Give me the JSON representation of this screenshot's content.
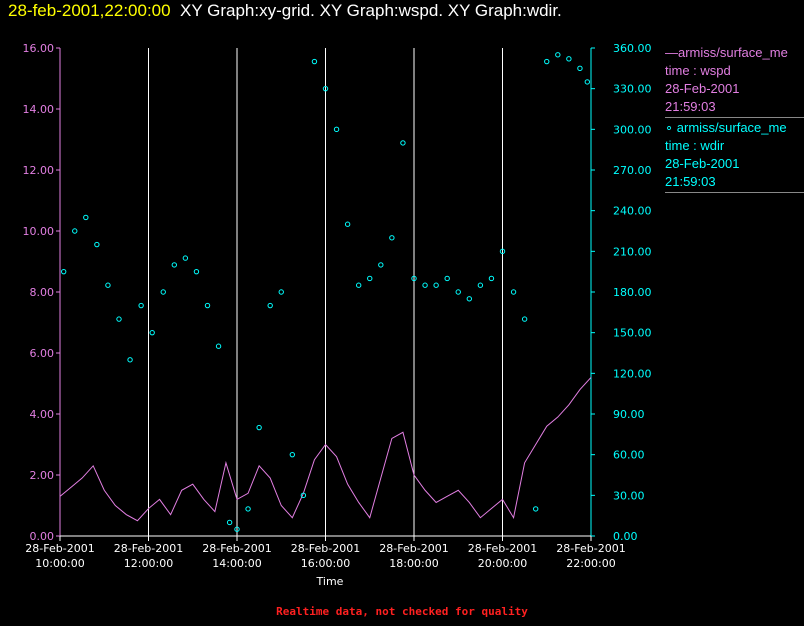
{
  "header": {
    "timestamp": "28-feb-2001,22:00:00",
    "titles": "XY Graph:xy-grid.  XY Graph:wspd.  XY Graph:wdir."
  },
  "legend": [
    {
      "marker": "—",
      "name": "armiss/surface_me",
      "line1": "time : wspd",
      "line2": "28-Feb-2001",
      "line3": "21:59:03",
      "color": "#e27fe2"
    },
    {
      "marker": "∘",
      "name": "armiss/surface_me",
      "line1": "time : wdir",
      "line2": "28-Feb-2001",
      "line3": "21:59:03",
      "color": "#00ffff"
    }
  ],
  "footer": "Realtime data, not checked for quality",
  "colors": {
    "wspd": "#e27fe2",
    "wdir": "#00ffff",
    "grid": "#ffffff"
  },
  "chart_data": {
    "type": "line",
    "xlabel": "Time",
    "x_ticks": [
      {
        "date": "28-Feb-2001",
        "time": "10:00:00"
      },
      {
        "date": "28-Feb-2001",
        "time": "12:00:00"
      },
      {
        "date": "28-Feb-2001",
        "time": "14:00:00"
      },
      {
        "date": "28-Feb-2001",
        "time": "16:00:00"
      },
      {
        "date": "28-Feb-2001",
        "time": "18:00:00"
      },
      {
        "date": "28-Feb-2001",
        "time": "20:00:00"
      },
      {
        "date": "28-Feb-2001",
        "time": "22:00:00"
      }
    ],
    "xlim": [
      "10:00:00",
      "22:00:00"
    ],
    "grid_times": [
      "12:00:00",
      "14:00:00",
      "16:00:00",
      "18:00:00",
      "20:00:00"
    ],
    "y_left": {
      "ylim": [
        0,
        16
      ],
      "ticks": [
        "0.00",
        "2.00",
        "4.00",
        "6.00",
        "8.00",
        "10.00",
        "12.00",
        "14.00",
        "16.00"
      ]
    },
    "y_right": {
      "ylim": [
        0,
        360
      ],
      "ticks": [
        "0.00",
        "30.00",
        "60.00",
        "90.00",
        "120.00",
        "150.00",
        "180.00",
        "210.00",
        "240.00",
        "270.00",
        "300.00",
        "330.00",
        "360.00"
      ]
    },
    "series": [
      {
        "key": "wspd",
        "axis": "left",
        "style": "line",
        "x": [
          "10:00",
          "10:15",
          "10:30",
          "10:45",
          "11:00",
          "11:15",
          "11:30",
          "11:45",
          "12:00",
          "12:15",
          "12:30",
          "12:45",
          "13:00",
          "13:15",
          "13:30",
          "13:45",
          "14:00",
          "14:15",
          "14:30",
          "14:45",
          "15:00",
          "15:15",
          "15:30",
          "15:45",
          "16:00",
          "16:15",
          "16:30",
          "16:45",
          "17:00",
          "17:15",
          "17:30",
          "17:45",
          "18:00",
          "18:15",
          "18:30",
          "18:45",
          "19:00",
          "19:15",
          "19:30",
          "19:45",
          "20:00",
          "20:15",
          "20:30",
          "20:45",
          "21:00",
          "21:15",
          "21:30",
          "21:45",
          "22:00"
        ],
        "y": [
          1.3,
          1.6,
          1.9,
          2.3,
          1.5,
          1.0,
          0.7,
          0.5,
          0.9,
          1.2,
          0.7,
          1.5,
          1.7,
          1.2,
          0.8,
          2.4,
          1.2,
          1.4,
          2.3,
          1.9,
          1.0,
          0.6,
          1.4,
          2.5,
          3.0,
          2.6,
          1.7,
          1.1,
          0.6,
          1.9,
          3.2,
          3.4,
          2.0,
          1.5,
          1.1,
          1.3,
          1.5,
          1.1,
          0.6,
          0.9,
          1.2,
          0.6,
          2.4,
          3.0,
          3.6,
          3.9,
          4.3,
          4.8,
          5.2
        ]
      },
      {
        "key": "wdir",
        "axis": "right",
        "style": "markers",
        "x": [
          "10:05",
          "10:20",
          "10:35",
          "10:50",
          "11:05",
          "11:20",
          "11:35",
          "11:50",
          "12:05",
          "12:20",
          "12:35",
          "12:50",
          "13:05",
          "13:20",
          "13:35",
          "13:50",
          "14:00",
          "14:15",
          "14:30",
          "14:45",
          "15:00",
          "15:15",
          "15:30",
          "15:45",
          "16:00",
          "16:15",
          "16:30",
          "16:45",
          "17:00",
          "17:15",
          "17:30",
          "17:45",
          "18:00",
          "18:15",
          "18:30",
          "18:45",
          "19:00",
          "19:15",
          "19:30",
          "19:45",
          "20:00",
          "20:15",
          "20:30",
          "20:45",
          "21:00",
          "21:15",
          "21:30",
          "21:45",
          "21:55"
        ],
        "y": [
          195,
          225,
          235,
          215,
          185,
          160,
          130,
          170,
          150,
          180,
          200,
          205,
          195,
          170,
          140,
          10,
          5,
          20,
          80,
          170,
          180,
          60,
          30,
          350,
          330,
          300,
          230,
          185,
          190,
          200,
          220,
          290,
          190,
          185,
          185,
          190,
          180,
          175,
          185,
          190,
          210,
          180,
          160,
          20,
          350,
          355,
          352,
          345,
          335
        ]
      }
    ]
  }
}
